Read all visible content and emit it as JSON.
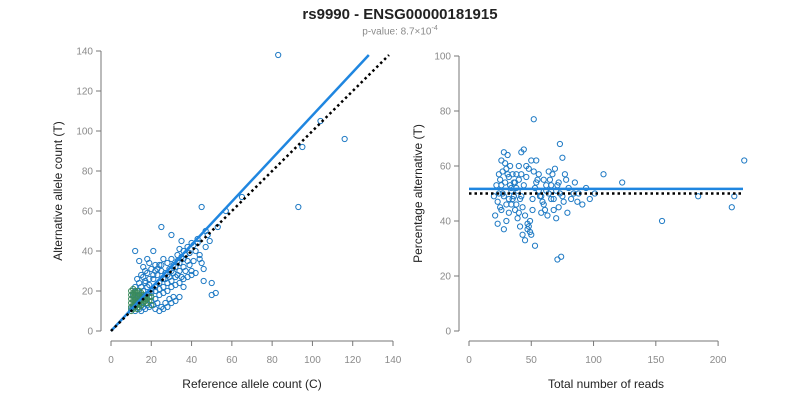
{
  "title": "rs9990 - ENSG00000181915",
  "subtitle": {
    "prefix": "p-value: 8.7×10",
    "exponent": "-4"
  },
  "colors": {
    "points_blue": "#1f7ac4",
    "points_green": "#3a8a5c",
    "fit_line": "#1f86e0",
    "reference_line": "#000000"
  },
  "chart_data": [
    {
      "type": "scatter",
      "xlabel": "Reference allele count (C)",
      "ylabel": "Alternative allele count (T)",
      "xlim": [
        0,
        140
      ],
      "ylim": [
        0,
        140
      ],
      "xticks": [
        0,
        20,
        40,
        60,
        80,
        100,
        120,
        140
      ],
      "yticks": [
        0,
        20,
        40,
        60,
        80,
        100,
        120,
        140
      ],
      "grid": false,
      "fit_line": {
        "x": [
          0,
          128
        ],
        "y": [
          0,
          138
        ]
      },
      "reference_line": {
        "x": [
          0,
          138
        ],
        "y": [
          0,
          138
        ],
        "style": "dotted"
      },
      "points": [
        [
          83,
          138
        ],
        [
          104,
          105
        ],
        [
          95,
          92
        ],
        [
          116,
          96
        ],
        [
          93,
          62
        ],
        [
          65,
          67
        ],
        [
          57,
          60
        ],
        [
          52,
          19
        ],
        [
          50,
          18
        ],
        [
          45,
          62
        ],
        [
          47,
          50
        ],
        [
          48,
          48
        ],
        [
          43,
          46
        ],
        [
          40,
          44
        ],
        [
          38,
          42
        ],
        [
          36,
          40
        ],
        [
          34,
          41
        ],
        [
          33,
          38
        ],
        [
          30,
          36
        ],
        [
          28,
          34
        ],
        [
          26,
          36
        ],
        [
          24,
          33
        ],
        [
          22,
          30
        ],
        [
          21,
          40
        ],
        [
          25,
          52
        ],
        [
          30,
          48
        ],
        [
          35,
          45
        ],
        [
          42,
          40
        ],
        [
          44,
          38
        ],
        [
          45,
          34
        ],
        [
          46,
          31
        ],
        [
          40,
          30
        ],
        [
          38,
          35
        ],
        [
          36,
          32
        ],
        [
          34,
          30
        ],
        [
          32,
          27
        ],
        [
          30,
          25
        ],
        [
          28,
          24
        ],
        [
          26,
          22
        ],
        [
          24,
          21
        ],
        [
          22,
          20
        ],
        [
          20,
          19
        ],
        [
          18,
          18
        ],
        [
          16,
          17
        ],
        [
          15,
          16
        ],
        [
          14,
          15
        ],
        [
          13,
          14
        ],
        [
          12,
          13
        ],
        [
          11,
          12
        ],
        [
          10,
          11
        ],
        [
          12,
          40
        ],
        [
          14,
          35
        ],
        [
          16,
          32
        ],
        [
          18,
          29
        ],
        [
          17,
          25
        ],
        [
          19,
          23
        ],
        [
          21,
          26
        ],
        [
          23,
          28
        ],
        [
          25,
          30
        ],
        [
          27,
          29
        ],
        [
          29,
          31
        ],
        [
          31,
          33
        ],
        [
          33,
          35
        ],
        [
          35,
          37
        ],
        [
          37,
          38
        ],
        [
          39,
          39
        ],
        [
          41,
          43
        ],
        [
          43,
          44
        ],
        [
          20,
          15
        ],
        [
          22,
          16
        ],
        [
          24,
          18
        ],
        [
          26,
          19
        ],
        [
          28,
          20
        ],
        [
          30,
          22
        ],
        [
          32,
          23
        ],
        [
          34,
          24
        ],
        [
          36,
          26
        ],
        [
          38,
          27
        ],
        [
          40,
          28
        ],
        [
          42,
          29
        ],
        [
          25,
          12
        ],
        [
          27,
          14
        ],
        [
          29,
          16
        ],
        [
          31,
          17
        ],
        [
          15,
          10
        ],
        [
          17,
          11
        ],
        [
          19,
          12
        ],
        [
          21,
          13
        ],
        [
          23,
          14
        ],
        [
          13,
          20
        ],
        [
          15,
          22
        ],
        [
          17,
          24
        ],
        [
          19,
          26
        ],
        [
          21,
          28
        ],
        [
          23,
          31
        ],
        [
          25,
          33
        ],
        [
          27,
          26
        ],
        [
          29,
          27
        ],
        [
          31,
          29
        ],
        [
          33,
          28
        ],
        [
          35,
          27
        ],
        [
          37,
          30
        ],
        [
          39,
          33
        ],
        [
          41,
          35
        ],
        [
          44,
          36
        ],
        [
          47,
          42
        ],
        [
          49,
          45
        ],
        [
          53,
          52
        ],
        [
          50,
          24
        ],
        [
          46,
          25
        ],
        [
          36,
          22
        ],
        [
          34,
          17
        ],
        [
          32,
          15
        ],
        [
          30,
          14
        ],
        [
          28,
          12
        ],
        [
          26,
          11
        ],
        [
          24,
          10
        ],
        [
          22,
          11
        ],
        [
          18,
          13
        ],
        [
          16,
          12
        ],
        [
          14,
          11
        ],
        [
          12,
          10
        ],
        [
          20,
          31
        ],
        [
          22,
          33
        ],
        [
          18,
          36
        ],
        [
          16,
          27
        ],
        [
          14,
          24
        ],
        [
          12,
          22
        ],
        [
          11,
          18
        ],
        [
          13,
          26
        ],
        [
          15,
          28
        ],
        [
          17,
          30
        ],
        [
          19,
          34
        ],
        [
          24,
          24
        ],
        [
          26,
          26
        ],
        [
          28,
          28
        ],
        [
          30,
          30
        ],
        [
          32,
          32
        ],
        [
          34,
          34
        ],
        [
          36,
          36
        ],
        [
          20,
          20
        ],
        [
          22,
          22
        ],
        [
          18,
          22
        ],
        [
          16,
          20
        ],
        [
          14,
          18
        ],
        [
          12,
          16
        ]
      ],
      "green_points": [
        [
          10,
          10
        ],
        [
          10,
          12
        ],
        [
          10,
          14
        ],
        [
          10,
          16
        ],
        [
          10,
          18
        ],
        [
          10,
          20
        ],
        [
          11,
          11
        ],
        [
          11,
          13
        ],
        [
          11,
          15
        ],
        [
          11,
          17
        ],
        [
          11,
          19
        ],
        [
          11,
          21
        ],
        [
          12,
          12
        ],
        [
          12,
          14
        ],
        [
          12,
          18
        ],
        [
          12,
          20
        ],
        [
          13,
          11
        ],
        [
          13,
          13
        ],
        [
          13,
          15
        ],
        [
          13,
          17
        ],
        [
          13,
          19
        ],
        [
          14,
          12
        ],
        [
          14,
          14
        ],
        [
          14,
          16
        ],
        [
          14,
          20
        ],
        [
          15,
          13
        ],
        [
          15,
          15
        ],
        [
          15,
          17
        ],
        [
          15,
          19
        ],
        [
          16,
          14
        ],
        [
          16,
          16
        ],
        [
          16,
          18
        ],
        [
          17,
          15
        ],
        [
          17,
          17
        ],
        [
          18,
          16
        ],
        [
          18,
          14
        ],
        [
          19,
          15
        ],
        [
          19,
          17
        ],
        [
          20,
          17
        ],
        [
          20,
          13
        ]
      ]
    },
    {
      "type": "scatter",
      "xlabel": "Total number of reads",
      "ylabel": "Percentage alternative (T)",
      "xlim": [
        0,
        220
      ],
      "ylim": [
        0,
        100
      ],
      "xticks": [
        0,
        50,
        100,
        150,
        200
      ],
      "yticks": [
        0,
        20,
        40,
        60,
        80,
        100
      ],
      "grid": false,
      "fit_line": {
        "y": 51.7
      },
      "reference_line": {
        "y": 50,
        "style": "dotted"
      },
      "points": [
        [
          221,
          62
        ],
        [
          211,
          45
        ],
        [
          213,
          49
        ],
        [
          184,
          49
        ],
        [
          155,
          40
        ],
        [
          123,
          54
        ],
        [
          108,
          57
        ],
        [
          101,
          50
        ],
        [
          91,
          46
        ],
        [
          87,
          47
        ],
        [
          84,
          50
        ],
        [
          80,
          52
        ],
        [
          78,
          55
        ],
        [
          75,
          49
        ],
        [
          74,
          27
        ],
        [
          71,
          26
        ],
        [
          73,
          68
        ],
        [
          75,
          63
        ],
        [
          77,
          57
        ],
        [
          72,
          45
        ],
        [
          70,
          41
        ],
        [
          68,
          48
        ],
        [
          66,
          53
        ],
        [
          64,
          58
        ],
        [
          62,
          51
        ],
        [
          60,
          46
        ],
        [
          58,
          43
        ],
        [
          56,
          57
        ],
        [
          54,
          62
        ],
        [
          52,
          77
        ],
        [
          53,
          31
        ],
        [
          50,
          35
        ],
        [
          48,
          38
        ],
        [
          46,
          60
        ],
        [
          44,
          66
        ],
        [
          42,
          65
        ],
        [
          40,
          55
        ],
        [
          38,
          52
        ],
        [
          36,
          49
        ],
        [
          34,
          46
        ],
        [
          32,
          43
        ],
        [
          30,
          40
        ],
        [
          28,
          37
        ],
        [
          26,
          44
        ],
        [
          24,
          50
        ],
        [
          22,
          53
        ],
        [
          20,
          49
        ],
        [
          23,
          47
        ],
        [
          25,
          55
        ],
        [
          27,
          58
        ],
        [
          29,
          61
        ],
        [
          31,
          64
        ],
        [
          33,
          60
        ],
        [
          35,
          57
        ],
        [
          37,
          54
        ],
        [
          39,
          51
        ],
        [
          41,
          48
        ],
        [
          43,
          45
        ],
        [
          45,
          42
        ],
        [
          47,
          39
        ],
        [
          49,
          36
        ],
        [
          51,
          48
        ],
        [
          53,
          52
        ],
        [
          55,
          55
        ],
        [
          57,
          49
        ],
        [
          59,
          47
        ],
        [
          61,
          44
        ],
        [
          63,
          42
        ],
        [
          65,
          55
        ],
        [
          67,
          57
        ],
        [
          69,
          59
        ],
        [
          71,
          53
        ],
        [
          73,
          50
        ],
        [
          76,
          47
        ],
        [
          79,
          43
        ],
        [
          82,
          48
        ],
        [
          85,
          54
        ],
        [
          88,
          50
        ],
        [
          94,
          52
        ],
        [
          97,
          48
        ],
        [
          21,
          42
        ],
        [
          23,
          39
        ],
        [
          25,
          45
        ],
        [
          27,
          50
        ],
        [
          29,
          54
        ],
        [
          31,
          57
        ],
        [
          33,
          53
        ],
        [
          35,
          48
        ],
        [
          37,
          44
        ],
        [
          39,
          41
        ],
        [
          41,
          38
        ],
        [
          43,
          35
        ],
        [
          45,
          33
        ],
        [
          47,
          37
        ],
        [
          49,
          40
        ],
        [
          51,
          44
        ],
        [
          26,
          62
        ],
        [
          28,
          65
        ],
        [
          30,
          59
        ],
        [
          32,
          56
        ],
        [
          34,
          52
        ],
        [
          36,
          49
        ],
        [
          38,
          46
        ],
        [
          40,
          43
        ],
        [
          42,
          49
        ],
        [
          44,
          53
        ],
        [
          46,
          56
        ],
        [
          48,
          59
        ],
        [
          50,
          62
        ],
        [
          52,
          58
        ],
        [
          54,
          54
        ],
        [
          56,
          51
        ],
        [
          58,
          49
        ],
        [
          60,
          55
        ],
        [
          62,
          53
        ],
        [
          64,
          50
        ],
        [
          66,
          48
        ],
        [
          68,
          44
        ],
        [
          70,
          51
        ],
        [
          72,
          54
        ],
        [
          24,
          57
        ],
        [
          26,
          53
        ],
        [
          28,
          49
        ],
        [
          30,
          46
        ],
        [
          32,
          48
        ],
        [
          34,
          51
        ],
        [
          36,
          54
        ],
        [
          38,
          57
        ],
        [
          40,
          60
        ],
        [
          42,
          57
        ]
      ]
    }
  ]
}
